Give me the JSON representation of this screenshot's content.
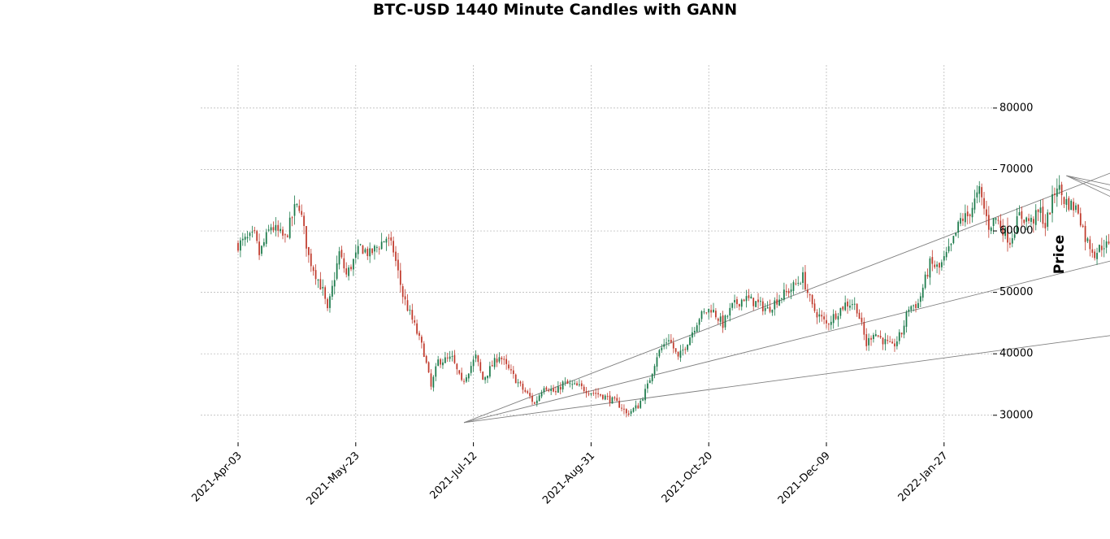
{
  "chart_data": {
    "type": "candlestick",
    "title": "BTC-USD 1440 Minute Candles with GANN",
    "ylabel": "Price",
    "xlabel": "",
    "x_ticks": [
      "2021-Apr-03",
      "2021-May-23",
      "2021-Jul-12",
      "2021-Aug-31",
      "2021-Oct-20",
      "2021-Dec-09",
      "2022-Jan-27"
    ],
    "y_ticks": [
      "30000",
      "40000",
      "50000",
      "60000",
      "70000",
      "80000"
    ],
    "ylim": [
      26000,
      87000
    ],
    "grid": true,
    "colors": {
      "up": "#1a7a4a",
      "down": "#c0392b",
      "fan": "#808080",
      "up_tip": "#2ca02c",
      "down_tip": "#d62728",
      "dark_tip": "#6b1a1a"
    },
    "closes_path": [
      [
        0,
        57800
      ],
      [
        7,
        59200
      ],
      [
        9,
        56200
      ],
      [
        14,
        60800
      ],
      [
        20,
        58700
      ],
      [
        24,
        63500
      ],
      [
        26,
        64200
      ],
      [
        30,
        55800
      ],
      [
        36,
        50200
      ],
      [
        38,
        46800
      ],
      [
        43,
        56400
      ],
      [
        46,
        52800
      ],
      [
        52,
        57400
      ],
      [
        56,
        56200
      ],
      [
        63,
        58900
      ],
      [
        66,
        56800
      ],
      [
        70,
        49500
      ],
      [
        75,
        44500
      ],
      [
        79,
        40200
      ],
      [
        82,
        34500
      ],
      [
        85,
        38800
      ],
      [
        91,
        39200
      ],
      [
        95,
        35200
      ],
      [
        101,
        39500
      ],
      [
        104,
        35800
      ],
      [
        111,
        39800
      ],
      [
        114,
        37900
      ],
      [
        121,
        34200
      ],
      [
        124,
        33000
      ],
      [
        126,
        31800
      ],
      [
        130,
        34900
      ],
      [
        135,
        33600
      ],
      [
        138,
        35200
      ],
      [
        145,
        34600
      ],
      [
        150,
        33800
      ],
      [
        155,
        33200
      ],
      [
        160,
        32200
      ],
      [
        163,
        31400
      ],
      [
        165,
        30200
      ],
      [
        170,
        31500
      ],
      [
        174,
        34700
      ],
      [
        178,
        39800
      ],
      [
        183,
        42600
      ],
      [
        187,
        39200
      ],
      [
        190,
        41300
      ],
      [
        196,
        46000
      ],
      [
        201,
        47400
      ],
      [
        206,
        44800
      ],
      [
        210,
        47700
      ],
      [
        215,
        49100
      ],
      [
        220,
        48300
      ],
      [
        225,
        47200
      ],
      [
        229,
        48800
      ],
      [
        235,
        50600
      ],
      [
        240,
        52500
      ],
      [
        244,
        47500
      ],
      [
        250,
        44800
      ],
      [
        254,
        46500
      ],
      [
        258,
        48100
      ],
      [
        261,
        48300
      ],
      [
        263,
        47400
      ],
      [
        267,
        41500
      ],
      [
        270,
        43600
      ],
      [
        274,
        42200
      ],
      [
        278,
        41000
      ],
      [
        282,
        43400
      ],
      [
        285,
        47600
      ],
      [
        289,
        48200
      ],
      [
        294,
        54600
      ],
      [
        298,
        53900
      ],
      [
        303,
        57400
      ],
      [
        307,
        61800
      ],
      [
        310,
        62400
      ],
      [
        315,
        66400
      ],
      [
        319,
        60800
      ],
      [
        322,
        62100
      ],
      [
        325,
        60300
      ],
      [
        328,
        58400
      ],
      [
        332,
        62500
      ],
      [
        337,
        61500
      ],
      [
        341,
        63200
      ],
      [
        343,
        60800
      ],
      [
        348,
        67600
      ],
      [
        351,
        65000
      ],
      [
        354,
        64200
      ],
      [
        357,
        63400
      ],
      [
        360,
        58900
      ],
      [
        364,
        56400
      ],
      [
        368,
        57900
      ],
      [
        372,
        56700
      ],
      [
        375,
        53800
      ],
      [
        379,
        57400
      ],
      [
        383,
        58600
      ],
      [
        385,
        57200
      ],
      [
        387,
        49200
      ],
      [
        391,
        48500
      ],
      [
        394,
        47100
      ],
      [
        398,
        49800
      ],
      [
        402,
        47400
      ],
      [
        406,
        46700
      ],
      [
        410,
        49300
      ],
      [
        414,
        51100
      ],
      [
        418,
        50200
      ],
      [
        421,
        46800
      ],
      [
        425,
        46900
      ],
      [
        429,
        46200
      ],
      [
        432,
        43500
      ],
      [
        436,
        41800
      ],
      [
        440,
        42500
      ],
      [
        444,
        43800
      ],
      [
        448,
        42700
      ],
      [
        452,
        41600
      ],
      [
        455,
        36400
      ],
      [
        458,
        35800
      ],
      [
        461,
        37000
      ],
      [
        464,
        37200
      ]
    ],
    "gann_fans": [
      {
        "from": [
          96,
          28800
        ],
        "to": [
          472,
          84400
        ],
        "name": ""
      },
      {
        "from": [
          96,
          28800
        ],
        "to": [
          472,
          64800
        ],
        "name": ""
      },
      {
        "from": [
          96,
          28800
        ],
        "to": [
          472,
          48200
        ],
        "name": ""
      },
      {
        "from": [
          352,
          69000
        ],
        "to": [
          472,
          59300
        ],
        "name": ""
      },
      {
        "from": [
          352,
          69000
        ],
        "to": [
          472,
          53200
        ],
        "name": ""
      },
      {
        "from": [
          352,
          69000
        ],
        "to": [
          472,
          47100
        ],
        "name": ""
      }
    ]
  }
}
